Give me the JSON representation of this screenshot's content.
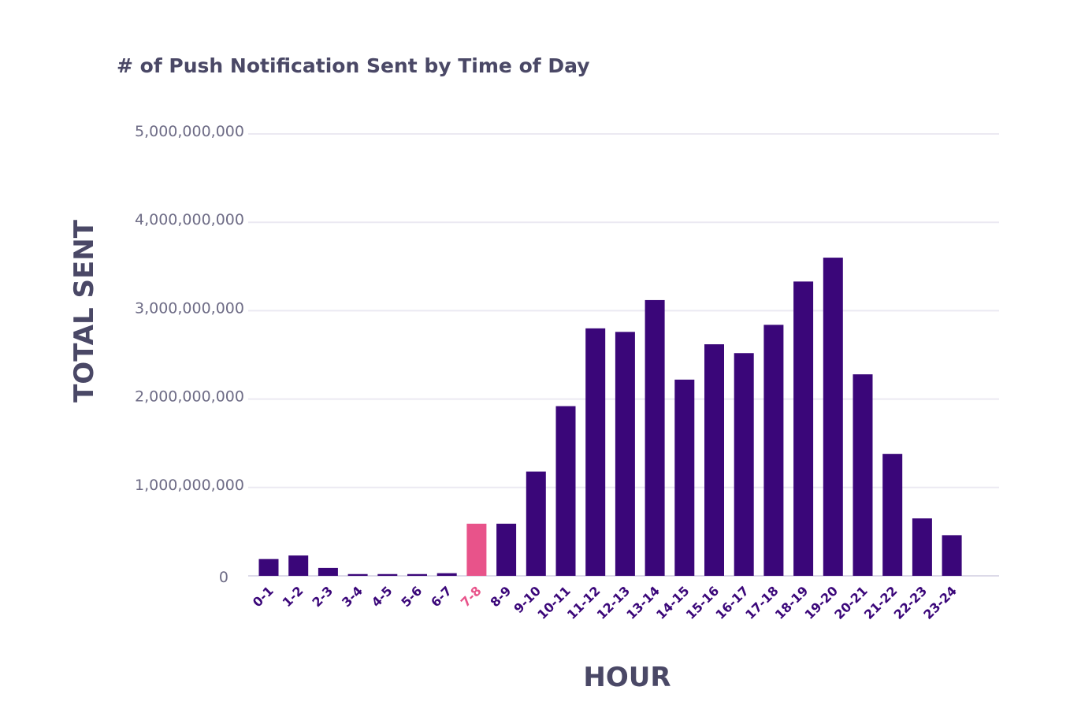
{
  "chart_data": {
    "type": "bar",
    "title": "# of Push Notification Sent by Time of Day",
    "xlabel": "HOUR",
    "ylabel": "TOTAL SENT",
    "ylim": [
      0,
      5000000000
    ],
    "yticks": [
      {
        "value": 0,
        "label": "0"
      },
      {
        "value": 1000000000,
        "label": "1,000,000,000"
      },
      {
        "value": 2000000000,
        "label": "2,000,000,000"
      },
      {
        "value": 3000000000,
        "label": "3,000,000,000"
      },
      {
        "value": 4000000000,
        "label": "4,000,000,000"
      },
      {
        "value": 5000000000,
        "label": "5,000,000,000"
      }
    ],
    "categories": [
      "0-1",
      "1-2",
      "2-3",
      "3-4",
      "4-5",
      "5-6",
      "6-7",
      "7-8",
      "8-9",
      "9-10",
      "10-11",
      "11-12",
      "12-13",
      "13-14",
      "14-15",
      "15-16",
      "16-17",
      "17-18",
      "18-19",
      "19-20",
      "20-21",
      "21-22",
      "22-23",
      "23-24"
    ],
    "values": [
      190000000,
      230000000,
      90000000,
      20000000,
      20000000,
      20000000,
      30000000,
      590000000,
      590000000,
      1180000000,
      1920000000,
      2800000000,
      2760000000,
      3120000000,
      2220000000,
      2620000000,
      2520000000,
      2840000000,
      3330000000,
      3600000000,
      2280000000,
      1380000000,
      650000000,
      460000000
    ],
    "highlight_category": "7-8",
    "grid": true,
    "legend": "none",
    "colors": {
      "bar": "#3a0679",
      "highlight": "#e8538a",
      "grid": "#ebe9f2",
      "title": "#4a4866",
      "tick": "#6e6c86"
    }
  }
}
